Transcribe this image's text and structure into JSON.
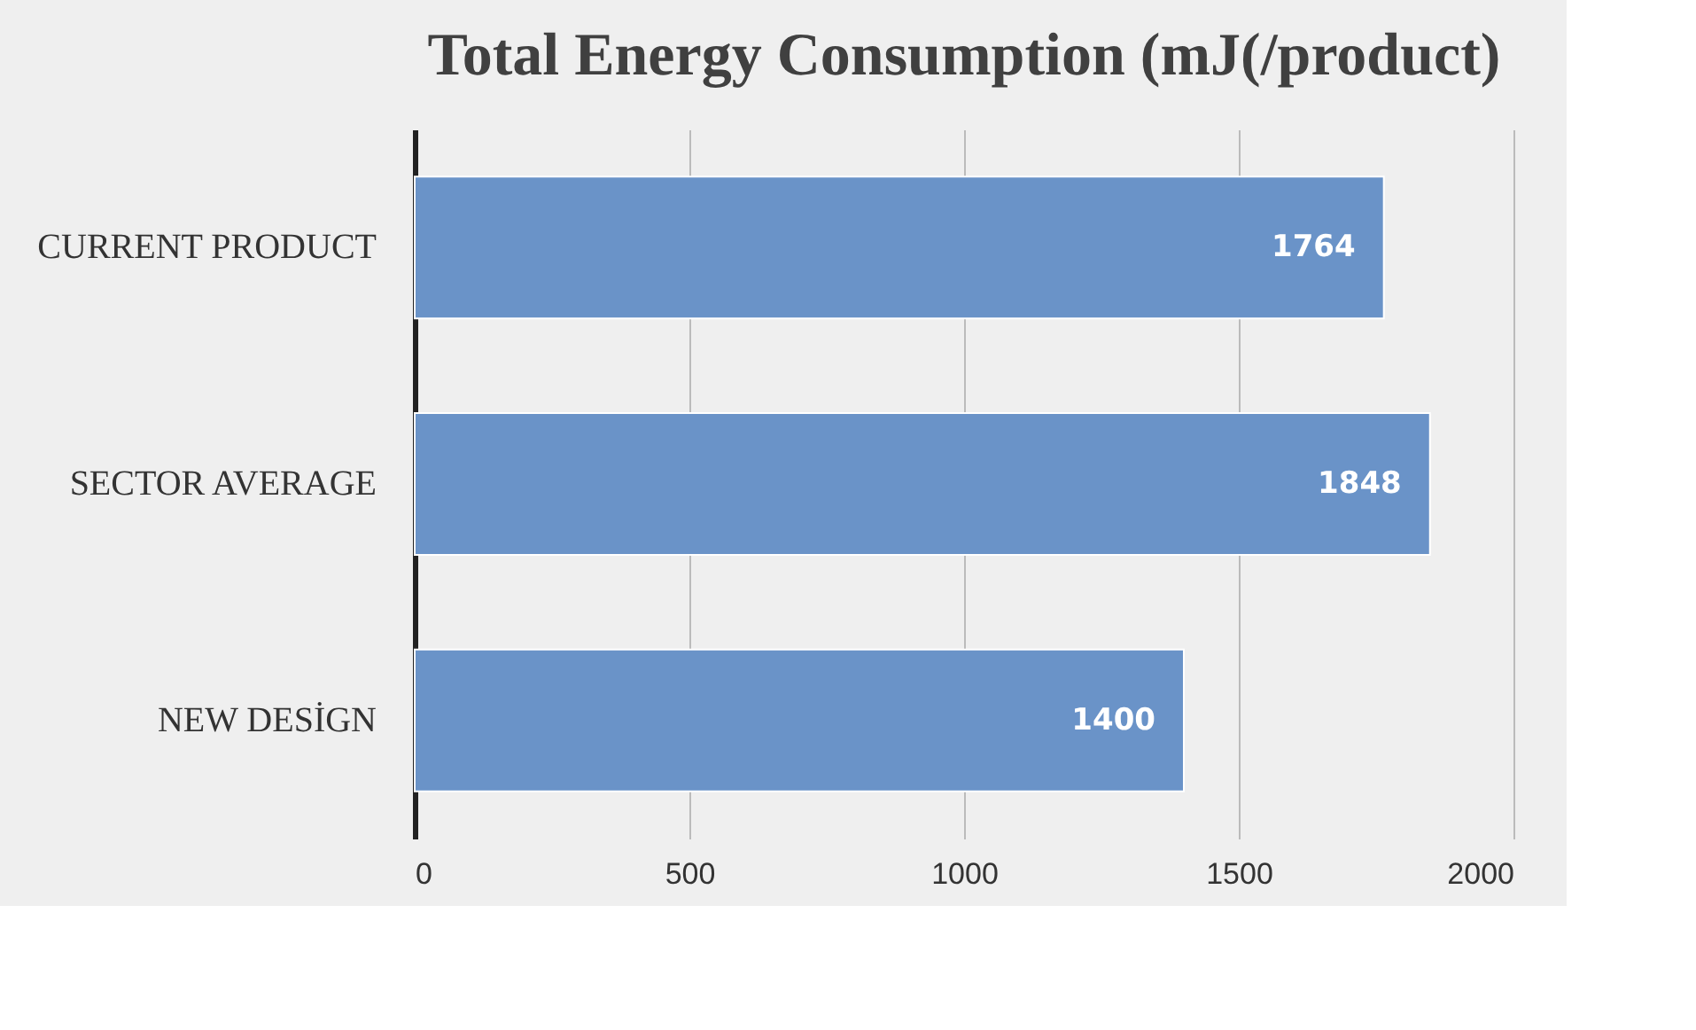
{
  "chart_data": {
    "type": "bar",
    "orientation": "horizontal",
    "title": "Total Energy Consumption (mJ(/product)",
    "categories": [
      "CURRENT PRODUCT",
      "SECTOR AVERAGE",
      "NEW DESİGN"
    ],
    "values": [
      1764,
      1848,
      1400
    ],
    "color": "#6a93c8",
    "xlim": [
      0,
      2000
    ],
    "xticks": [
      0,
      500,
      1000,
      1500,
      2000
    ],
    "grid": "x",
    "data_labels": true
  }
}
